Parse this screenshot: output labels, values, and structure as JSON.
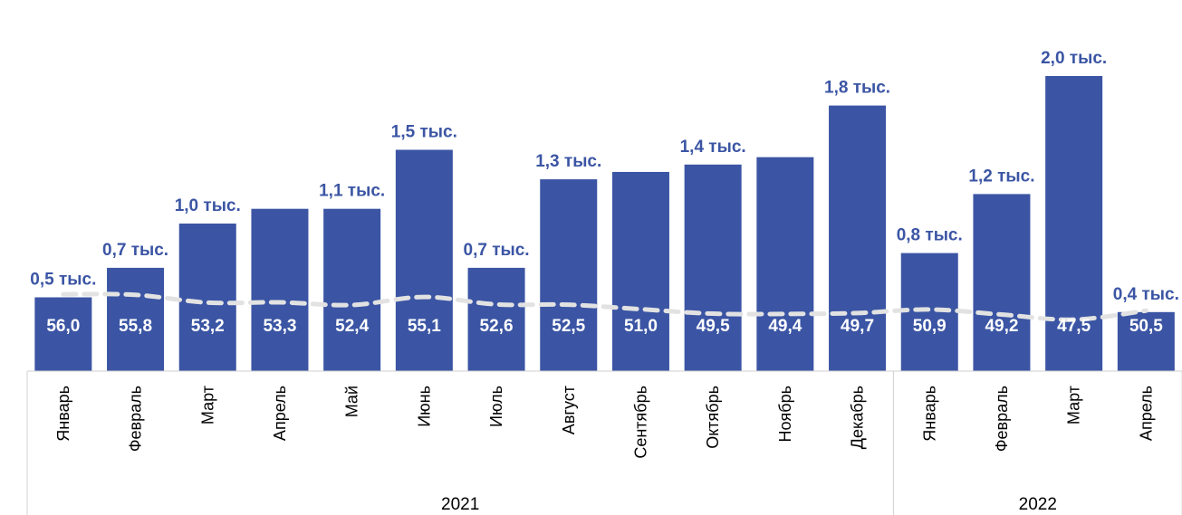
{
  "chart_data": {
    "type": "bar",
    "categories": [
      "Январь",
      "Февраль",
      "Март",
      "Апрель",
      "Май",
      "Июнь",
      "Июль",
      "Август",
      "Сентябрь",
      "Октябрь",
      "Ноябрь",
      "Декабрь",
      "Январь",
      "Февраль",
      "Март",
      "Апрель"
    ],
    "groups": [
      {
        "label": "2021",
        "count": 12
      },
      {
        "label": "2022",
        "count": 4
      }
    ],
    "series": [
      {
        "values": [
          0.5,
          0.7,
          1.0,
          1.1,
          1.1,
          1.5,
          0.7,
          1.3,
          1.35,
          1.4,
          1.45,
          1.8,
          0.8,
          1.2,
          2.0,
          0.4
        ],
        "top_labels": [
          "0,5 тыс.",
          "0,7 тыс.",
          "1,0 тыс.",
          "",
          "1,1 тыс.",
          "1,5 тыс.",
          "0,7 тыс.",
          "1,3 тыс.",
          "",
          "1,4 тыс.",
          "",
          "1,8 тыс.",
          "0,8 тыс.",
          "1,2 тыс.",
          "2,0 тыс.",
          "0,4 тыс."
        ],
        "color": "#3b55a4"
      },
      {
        "type": "line",
        "values": [
          56.0,
          55.8,
          53.2,
          53.3,
          52.4,
          55.1,
          52.6,
          52.5,
          51.0,
          49.5,
          49.4,
          49.7,
          50.9,
          49.2,
          47.5,
          50.5
        ],
        "labels": [
          "56,0",
          "55,8",
          "53,2",
          "53,3",
          "52,4",
          "55,1",
          "52,6",
          "52,5",
          "51,0",
          "49,5",
          "49,4",
          "49,7",
          "50,9",
          "49,2",
          "47,5",
          "50,5"
        ],
        "color": "#e2e2e2",
        "style": "dashed"
      }
    ],
    "grid": false,
    "legend": "none"
  }
}
